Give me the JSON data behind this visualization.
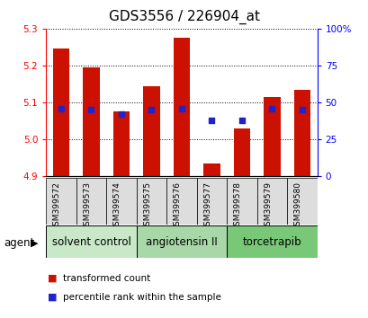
{
  "title": "GDS3556 / 226904_at",
  "samples": [
    "GSM399572",
    "GSM399573",
    "GSM399574",
    "GSM399575",
    "GSM399576",
    "GSM399577",
    "GSM399578",
    "GSM399579",
    "GSM399580"
  ],
  "bar_tops": [
    5.245,
    5.195,
    5.075,
    5.145,
    5.275,
    4.935,
    5.03,
    5.115,
    5.135
  ],
  "bar_base": 4.9,
  "percentile_values": [
    46,
    45,
    42,
    45,
    46,
    38,
    38,
    46,
    45
  ],
  "ylim_left": [
    4.9,
    5.3
  ],
  "ylim_right": [
    0,
    100
  ],
  "yticks_left": [
    4.9,
    5.0,
    5.1,
    5.2,
    5.3
  ],
  "yticks_right": [
    0,
    25,
    50,
    75,
    100
  ],
  "ytick_labels_right": [
    "0",
    "25",
    "50",
    "75",
    "100%"
  ],
  "bar_color": "#cc1100",
  "marker_color": "#2222cc",
  "groups": [
    {
      "label": "solvent control",
      "indices": [
        0,
        1,
        2
      ],
      "color": "#c8e8c8"
    },
    {
      "label": "angiotensin II",
      "indices": [
        3,
        4,
        5
      ],
      "color": "#a8d8a8"
    },
    {
      "label": "torcetrapib",
      "indices": [
        6,
        7,
        8
      ],
      "color": "#78c878"
    }
  ],
  "legend_items": [
    {
      "label": "transformed count",
      "color": "#cc1100"
    },
    {
      "label": "percentile rank within the sample",
      "color": "#2222cc"
    }
  ],
  "agent_label": "agent",
  "bar_width": 0.55,
  "title_fontsize": 11,
  "tick_fontsize": 7.5,
  "group_label_fontsize": 8.5,
  "sample_fontsize": 6.5
}
